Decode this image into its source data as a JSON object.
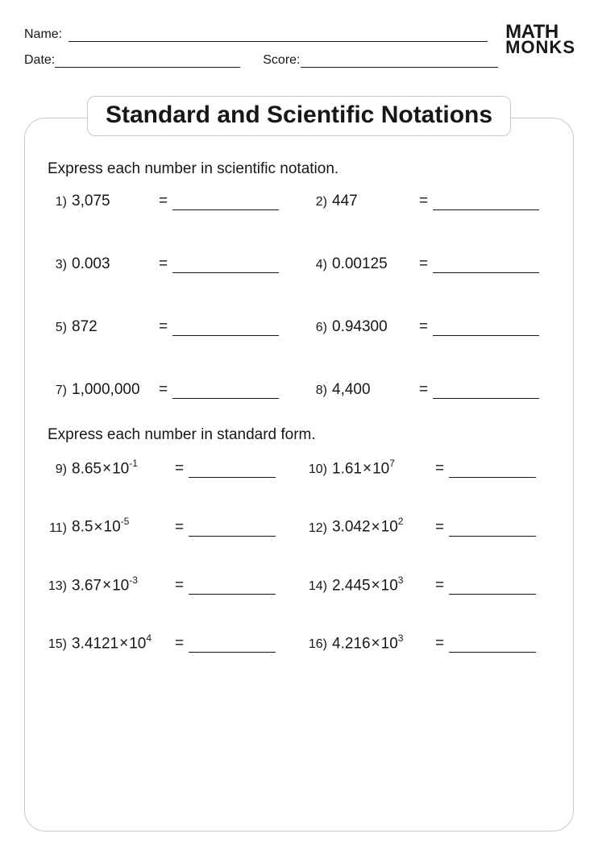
{
  "header": {
    "name_label": "Name:",
    "date_label": "Date:",
    "score_label": "Score:",
    "logo_line1": "MATH",
    "logo_line2": "MONKS"
  },
  "title": "Standard and Scientific Notations",
  "section1": {
    "instruction": "Express each number in scientific notation.",
    "items": [
      {
        "n": "1)",
        "v": "3,075"
      },
      {
        "n": "2)",
        "v": "447"
      },
      {
        "n": "3)",
        "v": "0.003"
      },
      {
        "n": "4)",
        "v": "0.00125"
      },
      {
        "n": "5)",
        "v": "872"
      },
      {
        "n": "6)",
        "v": "0.94300"
      },
      {
        "n": "7)",
        "v": "1,000,000"
      },
      {
        "n": "8)",
        "v": "4,400"
      }
    ]
  },
  "section2": {
    "instruction": "Express each number in standard form.",
    "items": [
      {
        "n": "9)",
        "coef": "8.65",
        "exp": "-1"
      },
      {
        "n": "10)",
        "coef": "1.61",
        "exp": "7"
      },
      {
        "n": "11)",
        "coef": "8.5",
        "exp": "-5"
      },
      {
        "n": "12)",
        "coef": "3.042",
        "exp": "2"
      },
      {
        "n": "13)",
        "coef": "3.67",
        "exp": "-3"
      },
      {
        "n": "14)",
        "coef": "2.445",
        "exp": "3"
      },
      {
        "n": "15)",
        "coef": "3.4121",
        "exp": "4"
      },
      {
        "n": "16)",
        "coef": "4.216",
        "exp": "3"
      }
    ]
  },
  "symbols": {
    "eq": "=",
    "times": "×",
    "ten": "10"
  }
}
